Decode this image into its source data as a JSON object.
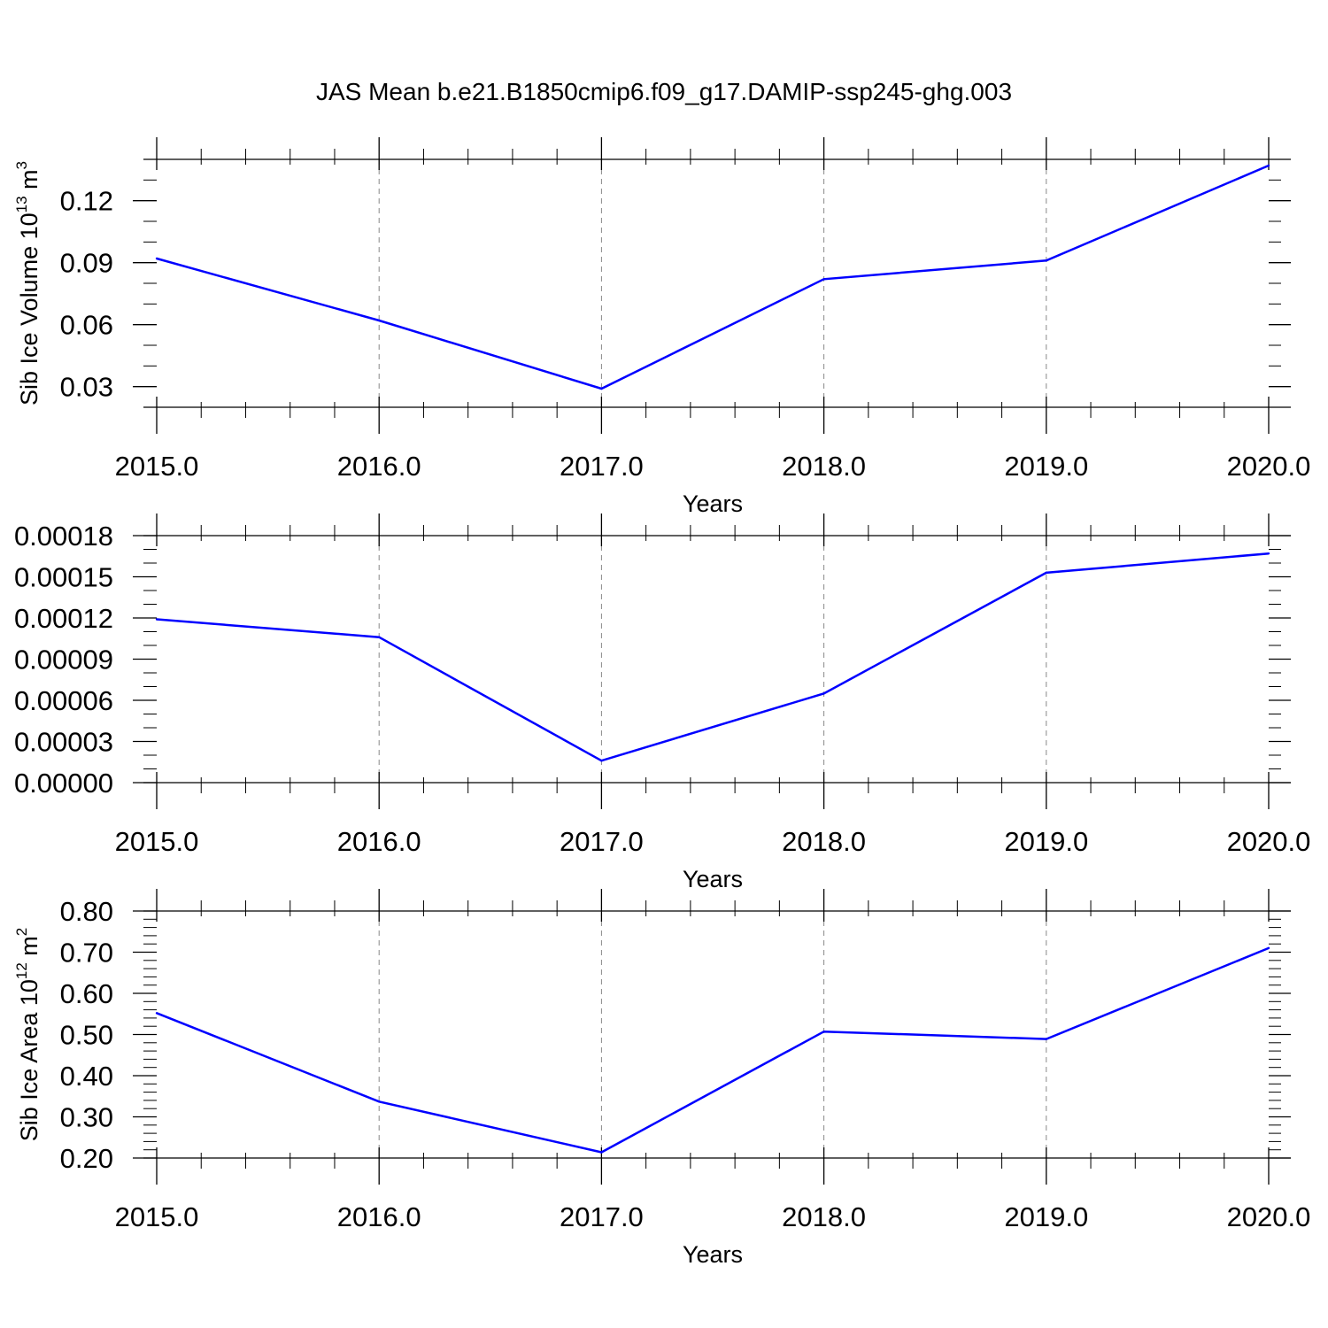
{
  "title": "JAS Mean b.e21.B1850cmip6.f09_g17.DAMIP-ssp245-ghg.003",
  "colors": {
    "line": "#0000ff",
    "axis": "#000000",
    "grid": "#888888"
  },
  "chart_data": [
    {
      "type": "line",
      "x": [
        2015,
        2016,
        2017,
        2018,
        2019,
        2020
      ],
      "xticks": [
        "2015.0",
        "2016.0",
        "2017.0",
        "2018.0",
        "2019.0",
        "2020.0"
      ],
      "xlim": [
        2015,
        2020
      ],
      "xlabel": "Years",
      "ylabel": "Sib Ice Volume 10",
      "ylabel_sup": "13",
      "ylabel_unit": " m",
      "ylabel_unit_sup": "3",
      "ylim": [
        0.02,
        0.14
      ],
      "yticks": [
        0.03,
        0.06,
        0.09,
        0.12
      ],
      "yticklabels": [
        "0.03",
        "0.06",
        "0.09",
        "0.12"
      ],
      "ymajor_step": 0.03,
      "yminor_step": 0.01,
      "grid": "vertical dashed",
      "series": [
        {
          "values": [
            0.092,
            0.062,
            0.029,
            0.082,
            0.091,
            0.137
          ]
        }
      ]
    },
    {
      "type": "line",
      "x": [
        2015,
        2016,
        2017,
        2018,
        2019,
        2020
      ],
      "xticks": [
        "2015.0",
        "2016.0",
        "2017.0",
        "2018.0",
        "2019.0",
        "2020.0"
      ],
      "xlim": [
        2015,
        2020
      ],
      "xlabel": "Years",
      "ylabel": "",
      "ylim": [
        0.0,
        0.00018
      ],
      "yticks": [
        0.0,
        3e-05,
        6e-05,
        9e-05,
        0.00012,
        0.00015,
        0.00018
      ],
      "yticklabels": [
        "0.00000",
        "0.00003",
        "0.00006",
        "0.00009",
        "0.00012",
        "0.00015",
        "0.00018"
      ],
      "ymajor_step": 3e-05,
      "yminor_step": 1e-05,
      "grid": "vertical dashed",
      "series": [
        {
          "values": [
            0.000119,
            0.000106,
            1.6e-05,
            6.5e-05,
            0.000153,
            0.000167
          ]
        }
      ]
    },
    {
      "type": "line",
      "x": [
        2015,
        2016,
        2017,
        2018,
        2019,
        2020
      ],
      "xticks": [
        "2015.0",
        "2016.0",
        "2017.0",
        "2018.0",
        "2019.0",
        "2020.0"
      ],
      "xlim": [
        2015,
        2020
      ],
      "xlabel": "Years",
      "ylabel": "Sib Ice Area 10",
      "ylabel_sup": "12",
      "ylabel_unit": " m",
      "ylabel_unit_sup": "2",
      "ylim": [
        0.2,
        0.8
      ],
      "yticks": [
        0.2,
        0.3,
        0.4,
        0.5,
        0.6,
        0.7,
        0.8
      ],
      "yticklabels": [
        "0.20",
        "0.30",
        "0.40",
        "0.50",
        "0.60",
        "0.70",
        "0.80"
      ],
      "ymajor_step": 0.1,
      "yminor_step": 0.02,
      "grid": "vertical dashed",
      "series": [
        {
          "values": [
            0.552,
            0.337,
            0.214,
            0.507,
            0.489,
            0.71
          ]
        }
      ]
    }
  ]
}
